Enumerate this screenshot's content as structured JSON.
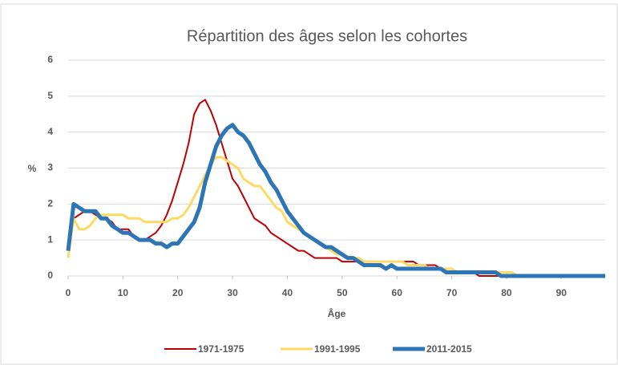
{
  "chart_data": {
    "type": "line",
    "title": "Répartition des âges selon les cohortes",
    "x_label": "Âge",
    "y_label": "%",
    "x": [
      0,
      1,
      2,
      3,
      4,
      5,
      6,
      7,
      8,
      9,
      10,
      11,
      12,
      13,
      14,
      15,
      16,
      17,
      18,
      19,
      20,
      21,
      22,
      23,
      24,
      25,
      26,
      27,
      28,
      29,
      30,
      31,
      32,
      33,
      34,
      35,
      36,
      37,
      38,
      39,
      40,
      41,
      42,
      43,
      44,
      45,
      46,
      47,
      48,
      49,
      50,
      51,
      52,
      53,
      54,
      55,
      56,
      57,
      58,
      59,
      60,
      61,
      62,
      63,
      64,
      65,
      66,
      67,
      68,
      69,
      70,
      71,
      72,
      73,
      74,
      75,
      76,
      77,
      78,
      79,
      80,
      81,
      82,
      83,
      84,
      85,
      86,
      87,
      88,
      89,
      90,
      91,
      92,
      93,
      94,
      95,
      96,
      97,
      98
    ],
    "series": [
      {
        "name": "1971-1975",
        "color": "#c00000",
        "width": 2,
        "values": [
          0.8,
          1.6,
          1.7,
          1.8,
          1.8,
          1.7,
          1.6,
          1.6,
          1.5,
          1.3,
          1.3,
          1.3,
          1.1,
          1.0,
          1.0,
          1.1,
          1.2,
          1.4,
          1.7,
          2.1,
          2.6,
          3.1,
          3.7,
          4.5,
          4.8,
          4.9,
          4.6,
          4.2,
          3.7,
          3.2,
          2.7,
          2.5,
          2.2,
          1.9,
          1.6,
          1.5,
          1.4,
          1.2,
          1.1,
          1.0,
          0.9,
          0.8,
          0.7,
          0.7,
          0.6,
          0.5,
          0.5,
          0.5,
          0.5,
          0.5,
          0.4,
          0.4,
          0.4,
          0.4,
          0.4,
          0.4,
          0.4,
          0.4,
          0.4,
          0.4,
          0.4,
          0.4,
          0.4,
          0.4,
          0.3,
          0.3,
          0.3,
          0.3,
          0.2,
          0.2,
          0.2,
          0.1,
          0.1,
          0.1,
          0.1,
          0,
          0,
          0,
          0,
          0,
          0,
          0,
          0,
          0,
          0,
          0,
          0,
          0,
          0,
          0,
          0,
          0,
          0,
          0,
          0,
          0,
          0,
          0,
          0
        ]
      },
      {
        "name": "1991-1995",
        "color": "#ffd966",
        "width": 3,
        "values": [
          0.5,
          1.6,
          1.3,
          1.3,
          1.4,
          1.6,
          1.7,
          1.7,
          1.7,
          1.7,
          1.7,
          1.6,
          1.6,
          1.6,
          1.5,
          1.5,
          1.5,
          1.5,
          1.5,
          1.6,
          1.6,
          1.7,
          1.9,
          2.2,
          2.5,
          2.8,
          3.1,
          3.3,
          3.3,
          3.2,
          3.1,
          3.0,
          2.7,
          2.6,
          2.5,
          2.5,
          2.3,
          2.1,
          1.9,
          1.8,
          1.5,
          1.4,
          1.3,
          1.2,
          1.1,
          1.0,
          0.9,
          0.8,
          0.7,
          0.6,
          0.6,
          0.5,
          0.5,
          0.5,
          0.4,
          0.4,
          0.4,
          0.4,
          0.4,
          0.4,
          0.4,
          0.4,
          0.3,
          0.3,
          0.3,
          0.3,
          0.2,
          0.2,
          0.2,
          0.2,
          0.2,
          0.1,
          0.1,
          0.1,
          0.1,
          0.1,
          0.1,
          0.1,
          0.1,
          0.1,
          0.1,
          0.1,
          0,
          0,
          0,
          0,
          0,
          0,
          0,
          0,
          0,
          0,
          0,
          0,
          0,
          0,
          0,
          0,
          0
        ]
      },
      {
        "name": "2011-2015",
        "color": "#2e75b6",
        "width": 5,
        "values": [
          0.7,
          2.0,
          1.9,
          1.8,
          1.8,
          1.8,
          1.6,
          1.6,
          1.4,
          1.3,
          1.2,
          1.2,
          1.1,
          1.0,
          1.0,
          1.0,
          0.9,
          0.9,
          0.8,
          0.9,
          0.9,
          1.1,
          1.3,
          1.5,
          1.9,
          2.6,
          3.1,
          3.6,
          3.9,
          4.1,
          4.2,
          4.0,
          3.9,
          3.7,
          3.4,
          3.1,
          2.9,
          2.6,
          2.4,
          2.1,
          1.8,
          1.6,
          1.4,
          1.2,
          1.1,
          1.0,
          0.9,
          0.8,
          0.8,
          0.7,
          0.6,
          0.5,
          0.5,
          0.4,
          0.3,
          0.3,
          0.3,
          0.3,
          0.2,
          0.3,
          0.2,
          0.2,
          0.2,
          0.2,
          0.2,
          0.2,
          0.2,
          0.2,
          0.2,
          0.1,
          0.1,
          0.1,
          0.1,
          0.1,
          0.1,
          0.1,
          0.1,
          0.1,
          0.1,
          0,
          0,
          0,
          0,
          0,
          0,
          0,
          0,
          0,
          0,
          0,
          0,
          0,
          0,
          0,
          0,
          0,
          0,
          0,
          0
        ]
      }
    ],
    "xlim": [
      0,
      98
    ],
    "xticks": [
      0,
      10,
      20,
      30,
      40,
      50,
      60,
      70,
      80,
      90
    ],
    "ylim": [
      0,
      6
    ],
    "yticks": [
      0,
      1,
      2,
      3,
      4,
      5,
      6
    ],
    "grid": true,
    "legend": "bottom"
  }
}
